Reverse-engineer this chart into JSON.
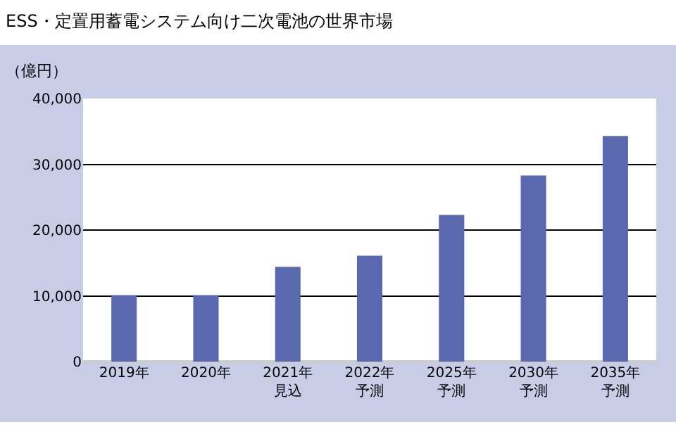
{
  "chart_data": {
    "type": "bar",
    "title": "ESS・定置用蓄電システム向け二次電池の世界市場",
    "ylabel": "（億円）",
    "categories": [
      "2019年",
      "2020年",
      "2021年見込",
      "2022年予測",
      "2025年予測",
      "2030年予測",
      "2035年予測"
    ],
    "values": [
      10100,
      10100,
      14400,
      16100,
      22300,
      28300,
      34300
    ],
    "color": "#5a68b0",
    "ylim": [
      0,
      40000
    ],
    "yticks": [
      {
        "value": 0,
        "label": "0"
      },
      {
        "value": 10000,
        "label": "10,000"
      },
      {
        "value": 20000,
        "label": "20,000"
      },
      {
        "value": 30000,
        "label": "30,000"
      },
      {
        "value": 40000,
        "label": "40,000"
      }
    ],
    "grid": "y",
    "legend": false
  }
}
